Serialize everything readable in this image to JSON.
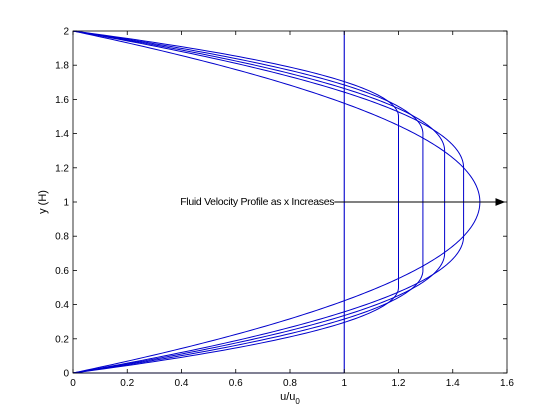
{
  "chart_data": {
    "type": "line",
    "title": "",
    "xlabel": "u/u",
    "xlabel_sub": "0",
    "ylabel": "y (H)",
    "xlim": [
      0,
      1.6
    ],
    "ylim": [
      0,
      2
    ],
    "xticks": [
      "0",
      "0.2",
      "0.4",
      "0.6",
      "0.8",
      "1",
      "1.2",
      "1.4",
      "1.6"
    ],
    "yticks": [
      "0",
      "0.2",
      "0.4",
      "0.6",
      "0.8",
      "1",
      "1.2",
      "1.4",
      "1.6",
      "1.8",
      "2"
    ],
    "grid": false,
    "legend": "none",
    "line_color": "#0000cc",
    "series": [
      {
        "core_velocity": 1.0,
        "plug_y": [
          0.0,
          2.0
        ]
      },
      {
        "core_velocity": 1.2,
        "plug_y": [
          0.5,
          1.5
        ]
      },
      {
        "core_velocity": 1.29,
        "plug_y": [
          0.6,
          1.4
        ]
      },
      {
        "core_velocity": 1.37,
        "plug_y": [
          0.7,
          1.3
        ]
      },
      {
        "core_velocity": 1.44,
        "plug_y": [
          0.8,
          1.2
        ]
      },
      {
        "core_velocity": 1.5,
        "plug_y": [
          1.0,
          1.0
        ]
      }
    ],
    "annotation": {
      "text": "Fluid Velocity Profile as x Increases",
      "arrow_from": [
        1.0,
        1.0
      ],
      "arrow_to": [
        1.59,
        1.0
      ]
    }
  }
}
